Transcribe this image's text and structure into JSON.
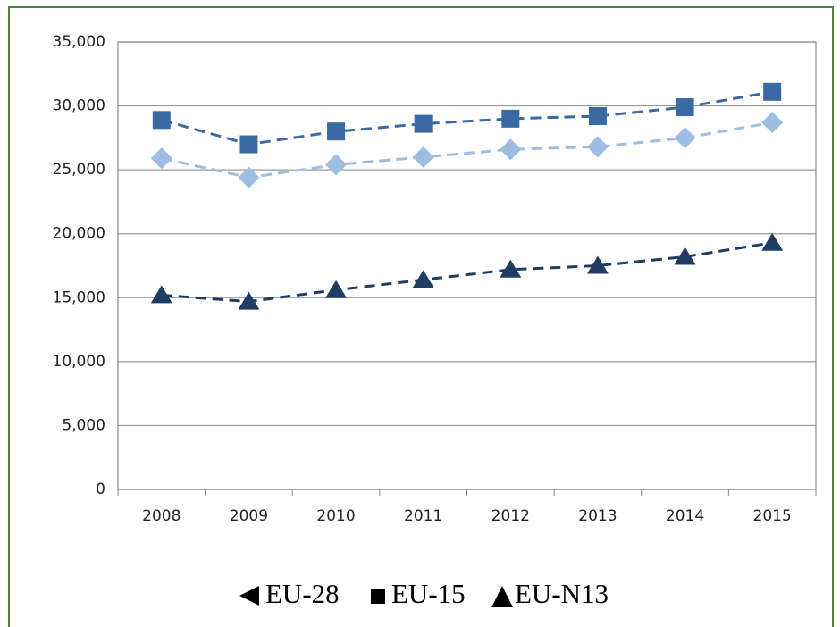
{
  "chart_data": {
    "type": "line",
    "categories": [
      "2008",
      "2009",
      "2010",
      "2011",
      "2012",
      "2013",
      "2014",
      "2015"
    ],
    "series": [
      {
        "name": "EU-28",
        "color": "#9dbde3",
        "marker": "diamond",
        "values": [
          25900,
          24400,
          25400,
          26000,
          26600,
          26800,
          27500,
          28700
        ]
      },
      {
        "name": "EU-15",
        "color": "#3b69a3",
        "marker": "square",
        "values": [
          28900,
          27000,
          28000,
          28600,
          29000,
          29200,
          29900,
          31100
        ]
      },
      {
        "name": "EU-N13",
        "color": "#1f3d63",
        "marker": "triangle",
        "values": [
          15200,
          14700,
          15600,
          16400,
          17200,
          17500,
          18200,
          19300
        ]
      }
    ],
    "ylim": [
      0,
      35000
    ],
    "yticks": [
      0,
      {
        "value": 5000,
        "label": "5,000"
      },
      {
        "value": 10000,
        "label": "10,000"
      },
      {
        "value": 15000,
        "label": "15,000"
      },
      {
        "value": 20000,
        "label": "20,000"
      },
      {
        "value": 25000,
        "label": "25,000"
      },
      {
        "value": 30000,
        "label": "30,000"
      },
      {
        "value": 35000,
        "label": "35,000"
      }
    ],
    "grid": true
  }
}
